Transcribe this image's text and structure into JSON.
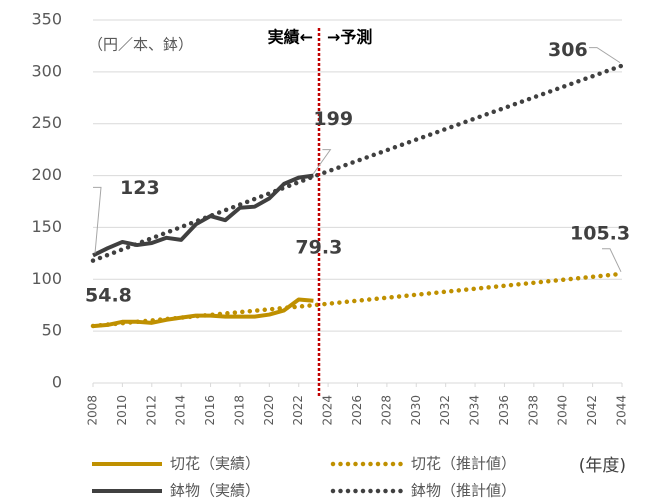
{
  "chart_data": {
    "type": "line",
    "unit_label": "（円／本、鉢）",
    "x_axis_label": "(年度)",
    "divider_left": "実績←",
    "divider_right": "→予測",
    "xlim": [
      2008,
      2044
    ],
    "xticks": [
      2008,
      2010,
      2012,
      2014,
      2016,
      2018,
      2020,
      2022,
      2024,
      2026,
      2028,
      2030,
      2032,
      2034,
      2036,
      2038,
      2040,
      2042,
      2044
    ],
    "ylim": [
      0,
      350
    ],
    "yticks": [
      0,
      50,
      100,
      150,
      200,
      250,
      300,
      350
    ],
    "grid": true,
    "series": [
      {
        "name": "切花（実績）",
        "color": "#bf9000",
        "style": "solid",
        "x": [
          2008,
          2009,
          2010,
          2011,
          2012,
          2013,
          2014,
          2015,
          2016,
          2017,
          2018,
          2019,
          2020,
          2021,
          2022,
          2023
        ],
        "values": [
          54.8,
          56,
          59,
          59,
          58,
          61,
          63,
          65,
          65,
          64,
          64,
          64,
          66,
          70,
          80.5,
          79.3
        ]
      },
      {
        "name": "切花（推計値）",
        "color": "#bf9000",
        "style": "dotted",
        "x": [
          2008,
          2023,
          2044
        ],
        "values": [
          55,
          75,
          105.3
        ]
      },
      {
        "name": "鉢物（実績）",
        "color": "#404040",
        "style": "solid",
        "x": [
          2008,
          2009,
          2010,
          2011,
          2012,
          2013,
          2014,
          2015,
          2016,
          2017,
          2018,
          2019,
          2020,
          2021,
          2022,
          2023
        ],
        "values": [
          123,
          130,
          136,
          133,
          135,
          140,
          138,
          153,
          161,
          157,
          169,
          170,
          178,
          192,
          198,
          200
        ]
      },
      {
        "name": "鉢物（推計値）",
        "color": "#404040",
        "style": "dotted",
        "x": [
          2008,
          2023,
          2044
        ],
        "values": [
          118,
          199,
          306
        ]
      }
    ]
  }
}
